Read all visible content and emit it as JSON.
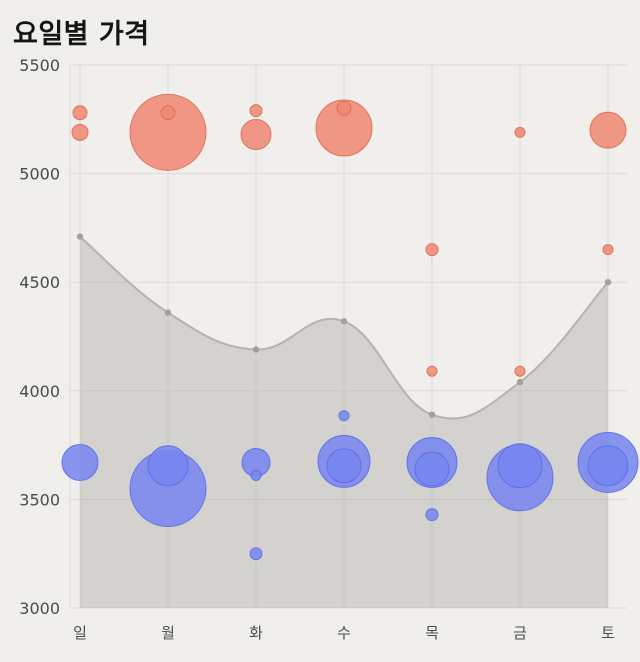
{
  "page": {
    "title": "요일별 가격",
    "background": "#f0efec",
    "title_color": "#151515"
  },
  "chart_data": {
    "type": "bubble",
    "title": "요일별 가격",
    "categories": [
      "일",
      "월",
      "화",
      "수",
      "목",
      "금",
      "토"
    ],
    "xlabel": "",
    "ylabel": "",
    "grid": true,
    "legend": false,
    "y_axis": {
      "min": 3000,
      "max": 5500,
      "ticks": [
        5500,
        5000,
        4500,
        4000,
        3500,
        3000
      ]
    },
    "area_series": {
      "name": "price-line",
      "values": [
        4710,
        4360,
        4190,
        4320,
        3890,
        4040,
        4500
      ],
      "line_color": "#b5b3b0",
      "fill_color": "rgba(160,158,155,0.35)",
      "marker_color": "#a3a19e"
    },
    "bubble_series": [
      {
        "name": "high-price-bubble",
        "fill": "#ee8672",
        "stroke": "#df6a52",
        "opacity": 0.85,
        "points": [
          {
            "day": 0,
            "value": 5280,
            "r": 7
          },
          {
            "day": 0,
            "value": 5190,
            "r": 8
          },
          {
            "day": 1,
            "value": 5190,
            "r": 38
          },
          {
            "day": 1,
            "value": 5280,
            "r": 7
          },
          {
            "day": 2,
            "value": 5180,
            "r": 15
          },
          {
            "day": 2,
            "value": 5290,
            "r": 6
          },
          {
            "day": 3,
            "value": 5210,
            "r": 28
          },
          {
            "day": 3,
            "value": 5300,
            "r": 7
          },
          {
            "day": 4,
            "value": 4650,
            "r": 6
          },
          {
            "day": 4,
            "value": 4090,
            "r": 5
          },
          {
            "day": 5,
            "value": 5190,
            "r": 5
          },
          {
            "day": 5,
            "value": 4090,
            "r": 5
          },
          {
            "day": 6,
            "value": 5200,
            "r": 18
          },
          {
            "day": 6,
            "value": 4650,
            "r": 5
          }
        ]
      },
      {
        "name": "low-price-bubble",
        "fill": "#7585f0",
        "stroke": "#5c6ee6",
        "opacity": 0.85,
        "points": [
          {
            "day": 0,
            "value": 3670,
            "r": 18
          },
          {
            "day": 1,
            "value": 3550,
            "r": 38
          },
          {
            "day": 1,
            "value": 3655,
            "r": 20
          },
          {
            "day": 2,
            "value": 3670,
            "r": 14
          },
          {
            "day": 2,
            "value": 3610,
            "r": 5
          },
          {
            "day": 2,
            "value": 3250,
            "r": 6
          },
          {
            "day": 3,
            "value": 3675,
            "r": 26
          },
          {
            "day": 3,
            "value": 3655,
            "r": 17
          },
          {
            "day": 3,
            "value": 3885,
            "r": 5
          },
          {
            "day": 4,
            "value": 3670,
            "r": 25
          },
          {
            "day": 4,
            "value": 3640,
            "r": 17
          },
          {
            "day": 4,
            "value": 3430,
            "r": 6
          },
          {
            "day": 5,
            "value": 3600,
            "r": 33
          },
          {
            "day": 5,
            "value": 3655,
            "r": 22
          },
          {
            "day": 6,
            "value": 3670,
            "r": 30
          },
          {
            "day": 6,
            "value": 3655,
            "r": 20
          }
        ]
      }
    ],
    "colors": {
      "grid": "#dcdad7",
      "tick": "#4b4b4b",
      "background": "#f0efec"
    }
  }
}
